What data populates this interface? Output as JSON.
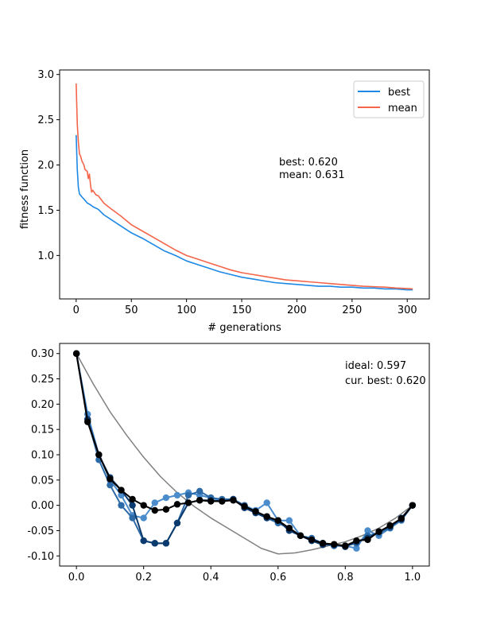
{
  "chart_data": [
    {
      "type": "line",
      "xlabel": "# generations",
      "ylabel": "fitness function",
      "xlim": [
        -15,
        320
      ],
      "ylim": [
        0.52,
        3.05
      ],
      "xticks": [
        0,
        50,
        100,
        150,
        200,
        250,
        300
      ],
      "yticks": [
        1.0,
        1.5,
        2.0,
        2.5,
        3.0
      ],
      "grid": false,
      "legend_position": "upper-right",
      "annotation": [
        "best: 0.620",
        "mean: 0.631"
      ],
      "series": [
        {
          "name": "best",
          "color": "#1e88e5",
          "x": [
            0,
            1,
            2,
            3,
            5,
            8,
            10,
            13,
            15,
            20,
            25,
            30,
            40,
            50,
            60,
            70,
            80,
            90,
            100,
            110,
            120,
            130,
            140,
            150,
            160,
            170,
            180,
            190,
            200,
            210,
            220,
            230,
            240,
            250,
            260,
            270,
            280,
            290,
            300,
            305
          ],
          "y": [
            2.33,
            1.95,
            1.75,
            1.68,
            1.65,
            1.61,
            1.58,
            1.56,
            1.54,
            1.51,
            1.45,
            1.41,
            1.33,
            1.25,
            1.19,
            1.12,
            1.05,
            1.0,
            0.94,
            0.9,
            0.86,
            0.82,
            0.79,
            0.76,
            0.74,
            0.72,
            0.7,
            0.69,
            0.68,
            0.67,
            0.66,
            0.66,
            0.65,
            0.65,
            0.64,
            0.64,
            0.63,
            0.63,
            0.62,
            0.62
          ]
        },
        {
          "name": "mean",
          "color": "#f4654a",
          "x": [
            0,
            1,
            2,
            3,
            4,
            5,
            7,
            8,
            10,
            11,
            12,
            13,
            14,
            15,
            18,
            20,
            25,
            30,
            40,
            50,
            60,
            70,
            80,
            90,
            100,
            110,
            120,
            130,
            140,
            150,
            160,
            170,
            180,
            190,
            200,
            210,
            220,
            230,
            240,
            250,
            260,
            270,
            280,
            290,
            300,
            305
          ],
          "y": [
            2.9,
            2.45,
            2.25,
            2.12,
            2.1,
            2.05,
            2.0,
            1.95,
            1.93,
            1.85,
            1.9,
            1.78,
            1.7,
            1.72,
            1.67,
            1.66,
            1.58,
            1.53,
            1.44,
            1.34,
            1.27,
            1.2,
            1.13,
            1.06,
            1.0,
            0.96,
            0.92,
            0.88,
            0.84,
            0.81,
            0.79,
            0.77,
            0.75,
            0.73,
            0.72,
            0.71,
            0.7,
            0.69,
            0.68,
            0.67,
            0.66,
            0.655,
            0.65,
            0.64,
            0.635,
            0.63
          ]
        }
      ]
    },
    {
      "type": "line",
      "xlabel": "",
      "ylabel": "",
      "xlim": [
        -0.05,
        1.05
      ],
      "ylim": [
        -0.12,
        0.32
      ],
      "xticks": [
        0.0,
        0.2,
        0.4,
        0.6,
        0.8,
        1.0
      ],
      "yticks": [
        -0.1,
        -0.05,
        0.0,
        0.05,
        0.1,
        0.15,
        0.2,
        0.25,
        0.3
      ],
      "grid": false,
      "annotation": [
        "ideal: 0.597",
        "cur. best: 0.620"
      ],
      "x": [
        0,
        0.0333,
        0.0667,
        0.1,
        0.1333,
        0.1667,
        0.2,
        0.2333,
        0.2667,
        0.3,
        0.3333,
        0.3667,
        0.4,
        0.4333,
        0.4667,
        0.5,
        0.5333,
        0.5667,
        0.6,
        0.6333,
        0.6667,
        0.7,
        0.7333,
        0.7667,
        0.8,
        0.8333,
        0.8667,
        0.9,
        0.9333,
        0.9667,
        1.0
      ],
      "ideal_curve": {
        "color": "#808080",
        "x": [
          0,
          0.05,
          0.1,
          0.15,
          0.2,
          0.25,
          0.3,
          0.35,
          0.4,
          0.45,
          0.5,
          0.55,
          0.6,
          0.65,
          0.7,
          0.75,
          0.8,
          0.85,
          0.9,
          0.95,
          1.0
        ],
        "y": [
          0.3,
          0.24,
          0.185,
          0.138,
          0.095,
          0.057,
          0.025,
          -0.002,
          -0.025,
          -0.045,
          -0.065,
          -0.085,
          -0.096,
          -0.094,
          -0.088,
          -0.08,
          -0.072,
          -0.06,
          -0.045,
          -0.025,
          0.0
        ]
      },
      "series": [
        {
          "color": "#4a8ccc",
          "y": [
            0.3,
            0.18,
            0.1,
            0.05,
            0.02,
            -0.02,
            -0.025,
            0.005,
            0.015,
            0.02,
            0.025,
            0.02,
            0.015,
            0.01,
            0.01,
            0.0,
            -0.01,
            0.005,
            -0.03,
            -0.03,
            -0.06,
            -0.07,
            -0.075,
            -0.08,
            -0.08,
            -0.085,
            -0.05,
            -0.06,
            -0.045,
            -0.03,
            0.0
          ]
        },
        {
          "color": "#2c6aa8",
          "y": [
            0.3,
            0.17,
            0.09,
            0.04,
            0.0,
            -0.025,
            -0.07,
            -0.075,
            -0.075,
            -0.035,
            0.02,
            0.028,
            0.015,
            0.012,
            0.012,
            0.0,
            -0.015,
            -0.025,
            -0.035,
            -0.045,
            -0.06,
            -0.065,
            -0.075,
            -0.08,
            -0.08,
            -0.075,
            -0.06,
            -0.055,
            -0.045,
            -0.025,
            0.0
          ]
        },
        {
          "color": "#0b3a6e",
          "y": [
            0.3,
            0.17,
            0.1,
            0.055,
            0.03,
            0.0,
            -0.07,
            -0.075,
            -0.075,
            -0.035,
            0.005,
            0.01,
            0.01,
            0.008,
            0.012,
            -0.005,
            -0.015,
            -0.025,
            -0.03,
            -0.05,
            -0.06,
            -0.07,
            -0.078,
            -0.078,
            -0.082,
            -0.072,
            -0.065,
            -0.052,
            -0.042,
            -0.028,
            0.0
          ]
        },
        {
          "color": "#000000",
          "y": [
            0.3,
            0.165,
            0.1,
            0.052,
            0.03,
            0.012,
            0.0,
            -0.01,
            -0.008,
            0.002,
            0.005,
            0.01,
            0.008,
            0.008,
            0.01,
            -0.002,
            -0.012,
            -0.022,
            -0.03,
            -0.045,
            -0.06,
            -0.068,
            -0.075,
            -0.077,
            -0.08,
            -0.07,
            -0.068,
            -0.052,
            -0.04,
            -0.026,
            0.0
          ]
        }
      ]
    }
  ]
}
